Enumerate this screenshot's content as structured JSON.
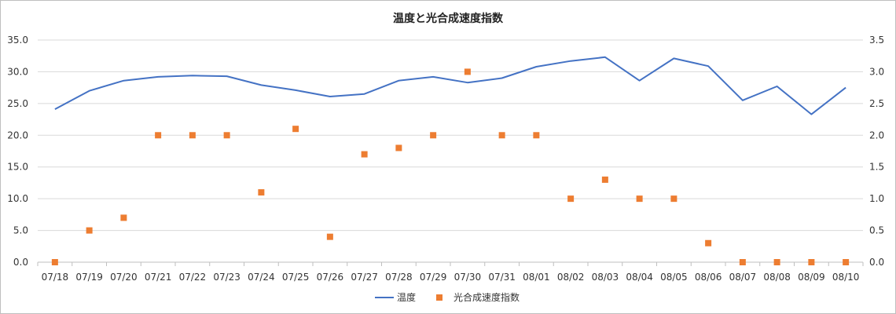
{
  "chart_data": {
    "type": "line",
    "title": "温度と光合成速度指数",
    "categories": [
      "07/18",
      "07/19",
      "07/20",
      "07/21",
      "07/22",
      "07/23",
      "07/24",
      "07/25",
      "07/26",
      "07/27",
      "07/28",
      "07/29",
      "07/30",
      "07/31",
      "08/01",
      "08/02",
      "08/03",
      "08/04",
      "08/05",
      "08/06",
      "08/07",
      "08/08",
      "08/09",
      "08/10"
    ],
    "series": [
      {
        "name": "温度",
        "type": "line",
        "axis": "left",
        "color": "#4472c4",
        "values": [
          24.1,
          27.0,
          28.6,
          29.2,
          29.4,
          29.3,
          27.9,
          27.1,
          26.1,
          26.5,
          28.6,
          29.2,
          28.3,
          29.0,
          30.8,
          31.7,
          32.3,
          28.6,
          32.1,
          30.9,
          25.5,
          27.7,
          23.3,
          27.5
        ]
      },
      {
        "name": "光合成速度指数",
        "type": "scatter",
        "axis": "right",
        "color": "#ed7d31",
        "marker": "square",
        "values": [
          0.0,
          0.5,
          0.7,
          2.0,
          2.0,
          2.0,
          1.1,
          2.1,
          0.4,
          1.7,
          1.8,
          2.0,
          3.0,
          2.0,
          2.0,
          1.0,
          1.3,
          1.0,
          1.0,
          0.3,
          0.0,
          0.0,
          0.0,
          0.0
        ]
      }
    ],
    "y_left": {
      "min": 0,
      "max": 35,
      "step": 5,
      "ticks": [
        "0.0",
        "5.0",
        "10.0",
        "15.0",
        "20.0",
        "25.0",
        "30.0",
        "35.0"
      ]
    },
    "y_right": {
      "min": 0,
      "max": 3.5,
      "step": 0.5,
      "ticks": [
        "0.0",
        "0.5",
        "1.0",
        "1.5",
        "2.0",
        "2.5",
        "3.0",
        "3.5"
      ]
    },
    "grid": true,
    "legend_position": "bottom"
  }
}
